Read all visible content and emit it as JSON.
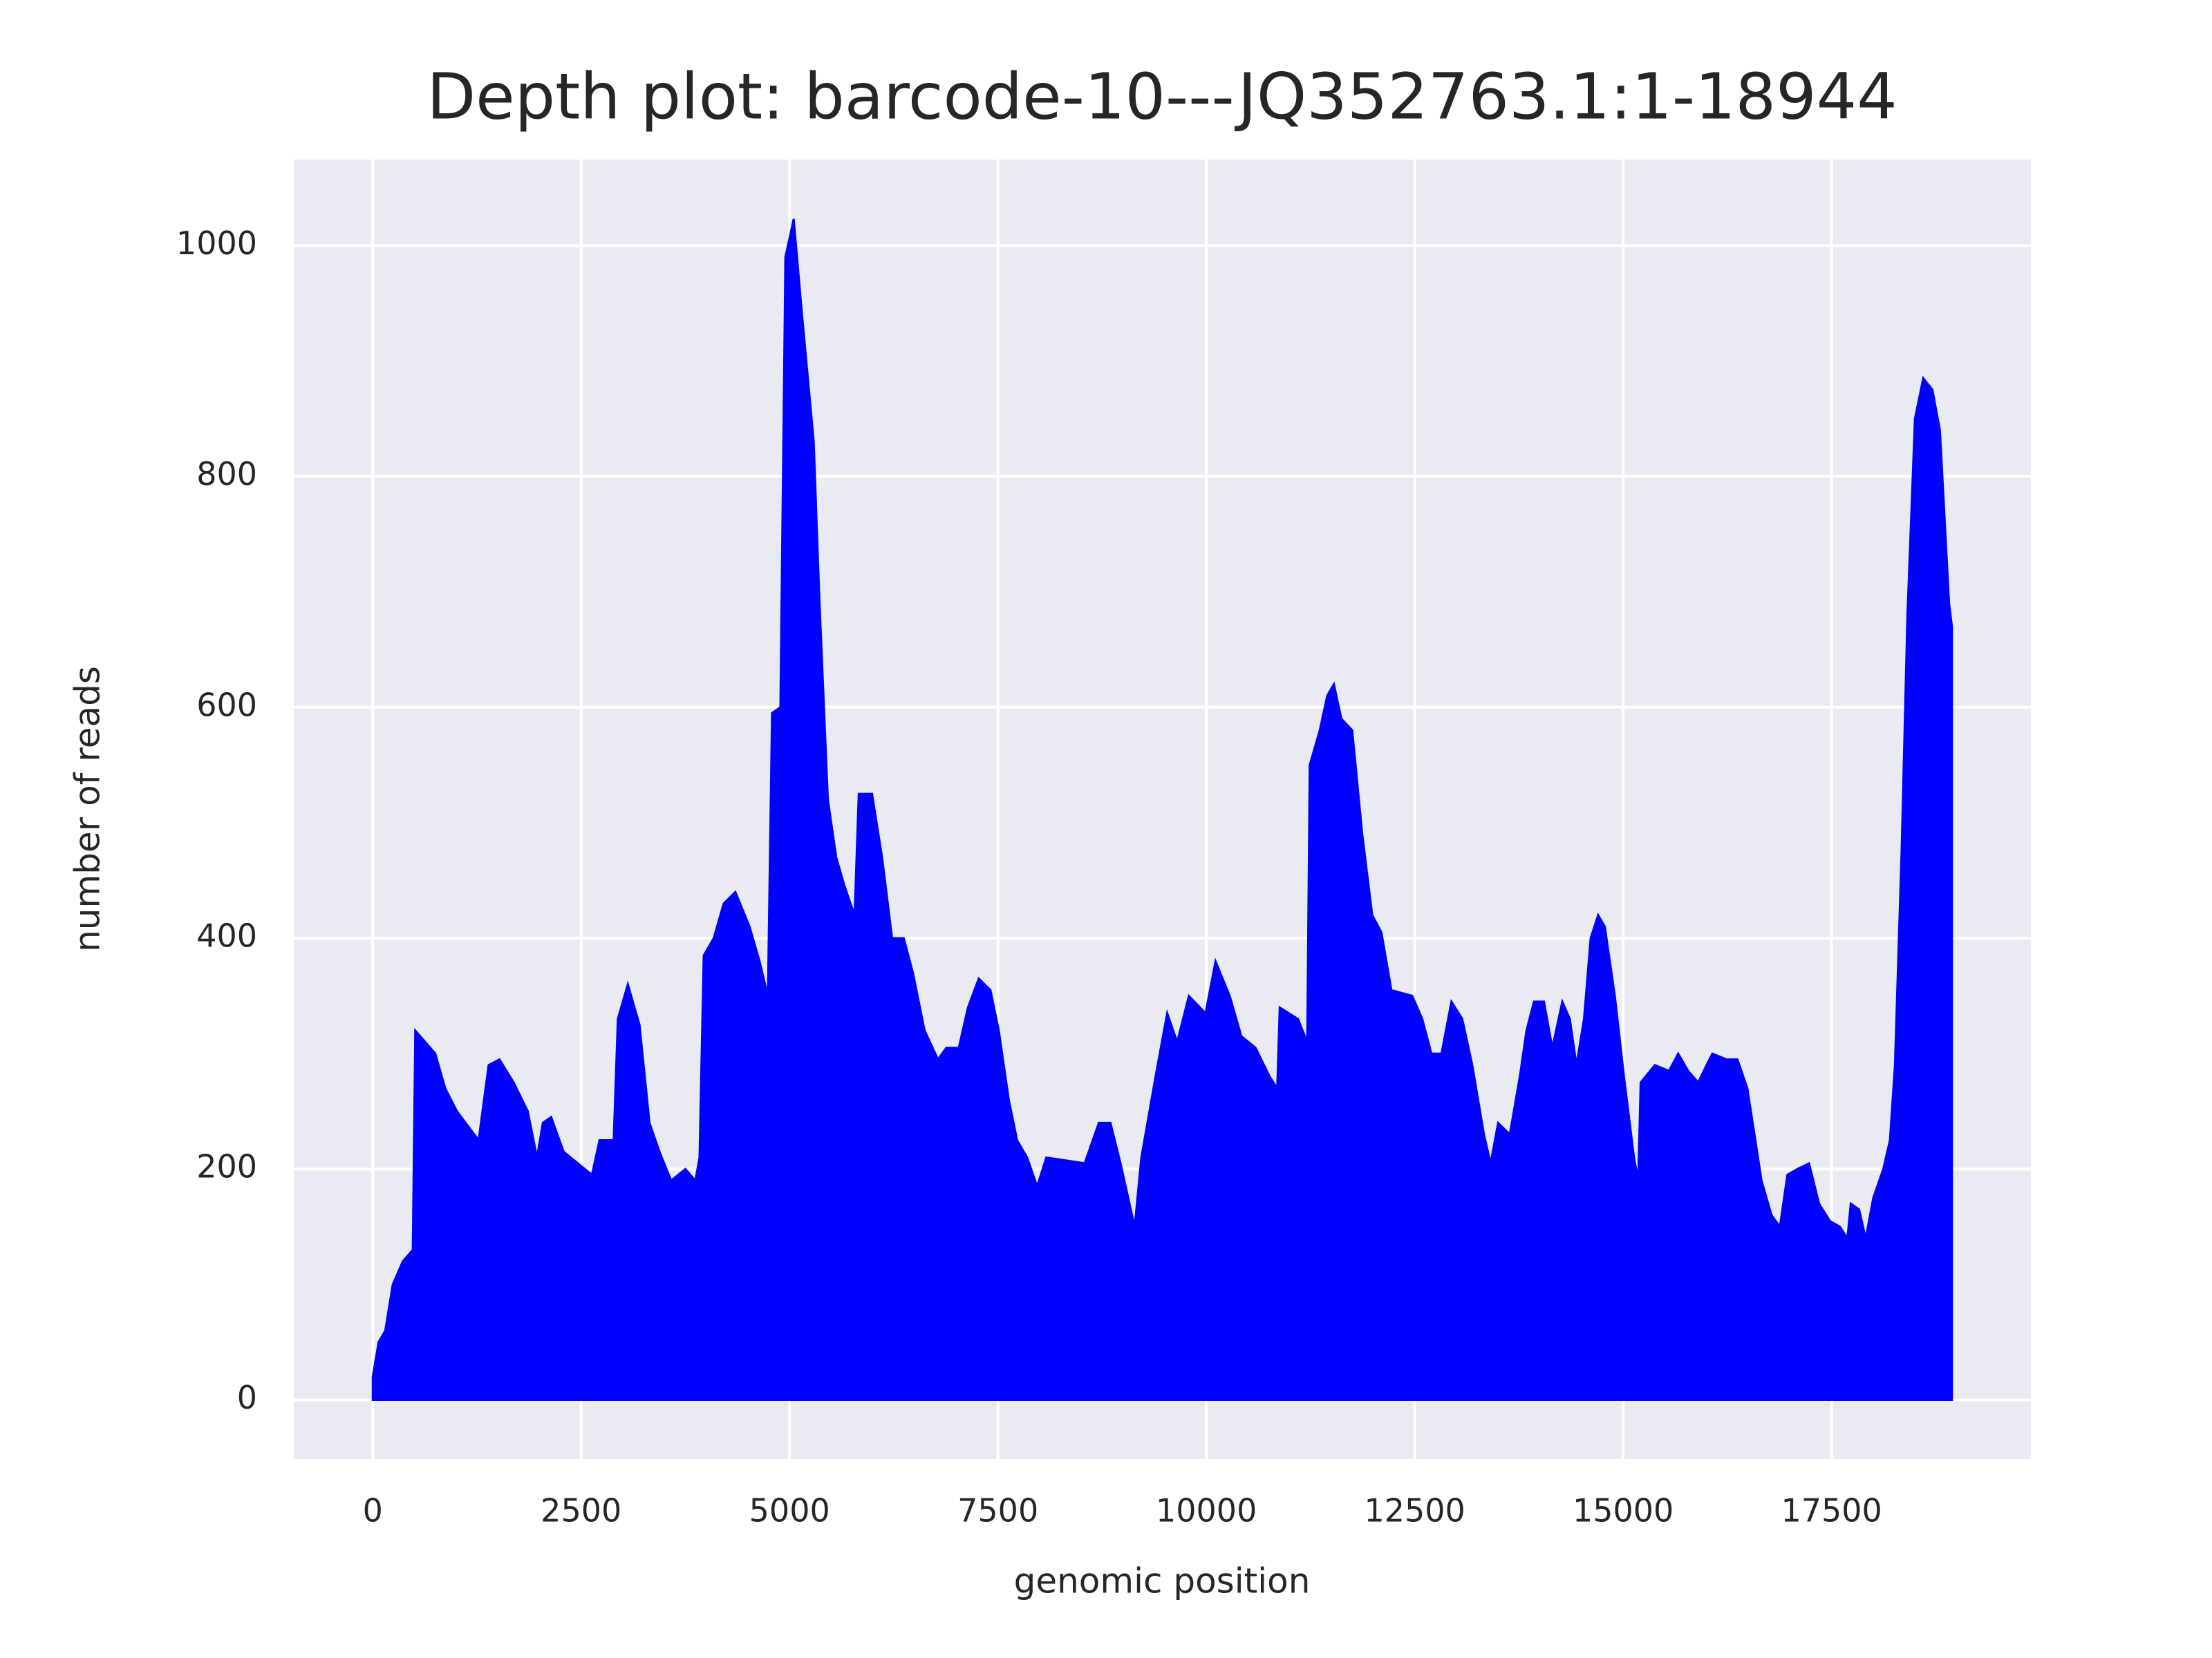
{
  "chart_data": {
    "type": "area",
    "title": "Depth plot: barcode-10---JQ352763.1:1-18944",
    "x_label": "genomic position",
    "y_label": "number of reads",
    "x": [
      0,
      70,
      150,
      240,
      360,
      480,
      510,
      750,
      870,
      1010,
      1270,
      1390,
      1520,
      1690,
      1860,
      1970,
      2040,
      2140,
      2290,
      2460,
      2630,
      2720,
      2890,
      2940,
      3060,
      3200,
      3320,
      3440,
      3580,
      3750,
      3870,
      3920,
      3970,
      4090,
      4210,
      4350,
      4520,
      4640,
      4740,
      4790,
      4890,
      4950,
      5050,
      5150,
      5290,
      5360,
      5460,
      5560,
      5660,
      5780,
      5830,
      5990,
      6110,
      6230,
      6370,
      6480,
      6620,
      6780,
      6880,
      7030,
      7140,
      7270,
      7410,
      7510,
      7630,
      7730,
      7850,
      7970,
      8080,
      8540,
      8710,
      8850,
      8970,
      9140,
      9220,
      9390,
      9530,
      9650,
      9790,
      9990,
      10110,
      10280,
      10420,
      10590,
      10760,
      10850,
      10880,
      11100,
      11210,
      11240,
      11360,
      11450,
      11530,
      11620,
      11750,
      11870,
      11990,
      12100,
      12220,
      12470,
      12590,
      12700,
      12820,
      12940,
      13070,
      13190,
      13330,
      13410,
      13500,
      13640,
      13760,
      13840,
      13930,
      14050,
      14150,
      14270,
      14360,
      14440,
      14530,
      14610,
      14700,
      14780,
      14900,
      15010,
      15130,
      15180,
      15210,
      15380,
      15550,
      15660,
      15780,
      15900,
      16000,
      16070,
      16240,
      16370,
      16490,
      16660,
      16780,
      16880,
      16970,
      17090,
      17230,
      17350,
      17480,
      17600,
      17690,
      17730,
      17830,
      17910,
      18000,
      18120,
      18200,
      18260,
      18340,
      18410,
      18500,
      18600,
      18710,
      18800,
      18910,
      18944
    ],
    "series": [
      {
        "color": "#0000ff",
        "values": [
          20,
          50,
          60,
          100,
          120,
          130,
          320,
          300,
          270,
          250,
          225,
          290,
          295,
          275,
          250,
          210,
          240,
          245,
          215,
          205,
          195,
          225,
          225,
          330,
          360,
          325,
          240,
          215,
          190,
          200,
          190,
          210,
          385,
          400,
          430,
          440,
          410,
          380,
          350,
          595,
          600,
          990,
          1023,
          940,
          830,
          690,
          520,
          470,
          445,
          420,
          525,
          525,
          470,
          400,
          400,
          370,
          320,
          295,
          305,
          305,
          340,
          365,
          355,
          320,
          260,
          225,
          210,
          185,
          210,
          205,
          240,
          240,
          205,
          150,
          210,
          280,
          335,
          310,
          350,
          335,
          380,
          350,
          315,
          305,
          280,
          270,
          340,
          330,
          310,
          550,
          580,
          610,
          620,
          590,
          580,
          490,
          420,
          405,
          355,
          350,
          330,
          300,
          300,
          345,
          330,
          290,
          230,
          205,
          240,
          230,
          280,
          320,
          345,
          345,
          305,
          345,
          330,
          290,
          330,
          400,
          420,
          410,
          350,
          280,
          210,
          190,
          275,
          290,
          285,
          300,
          285,
          275,
          290,
          300,
          295,
          295,
          270,
          190,
          160,
          150,
          195,
          200,
          205,
          170,
          155,
          150,
          140,
          170,
          165,
          140,
          175,
          200,
          225,
          290,
          475,
          680,
          850,
          885,
          875,
          840,
          690,
          670
        ]
      }
    ],
    "xlim": [
      -947.2,
      19891.2
    ],
    "ylim": [
      -51.2,
      1074.4
    ],
    "xticks": [
      0,
      2500,
      5000,
      7500,
      10000,
      12500,
      15000,
      17500
    ],
    "yticks": [
      0,
      200,
      400,
      600,
      800,
      1000
    ],
    "grid": true
  }
}
